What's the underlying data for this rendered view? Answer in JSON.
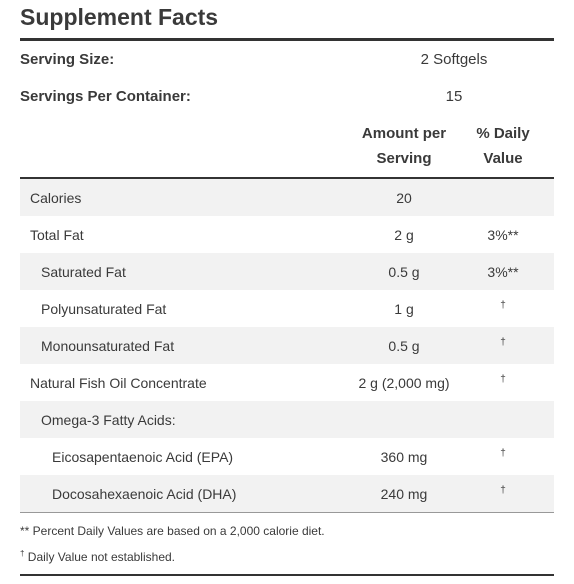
{
  "title": "Supplement Facts",
  "serving": {
    "size_label": "Serving Size:",
    "size_value": "2 Softgels",
    "per_container_label": "Servings Per Container:",
    "per_container_value": "15"
  },
  "columns": {
    "amount_line1": "Amount per",
    "amount_line2": "Serving",
    "dv_line1": "% Daily",
    "dv_line2": "Value"
  },
  "rows": [
    {
      "name": "Calories",
      "amount": "20",
      "dv": ""
    },
    {
      "name": "Total Fat",
      "amount": "2 g",
      "dv": "3%**"
    },
    {
      "name": "Saturated Fat",
      "amount": "0.5 g",
      "dv": "3%**"
    },
    {
      "name": "Polyunsaturated Fat",
      "amount": "1 g",
      "dv": "†"
    },
    {
      "name": "Monounsaturated Fat",
      "amount": "0.5 g",
      "dv": "†"
    },
    {
      "name": "Natural Fish Oil Concentrate",
      "amount": "2 g (2,000 mg)",
      "dv": "†"
    },
    {
      "name": "Omega-3 Fatty Acids:",
      "amount": "",
      "dv": ""
    },
    {
      "name": "Eicosapentaenoic Acid (EPA)",
      "amount": "360 mg",
      "dv": "†"
    },
    {
      "name": "Docosahexaenoic Acid (DHA)",
      "amount": "240 mg",
      "dv": "†"
    }
  ],
  "footnotes": {
    "percent_dv": "** Percent Daily Values are based on a 2,000 calorie diet.",
    "dagger_mark": "†",
    "dv_not_established": "Daily Value not established."
  },
  "colors": {
    "text": "#3a3a3a",
    "rule": "#333333",
    "row_shade": "#f2f2f2"
  }
}
